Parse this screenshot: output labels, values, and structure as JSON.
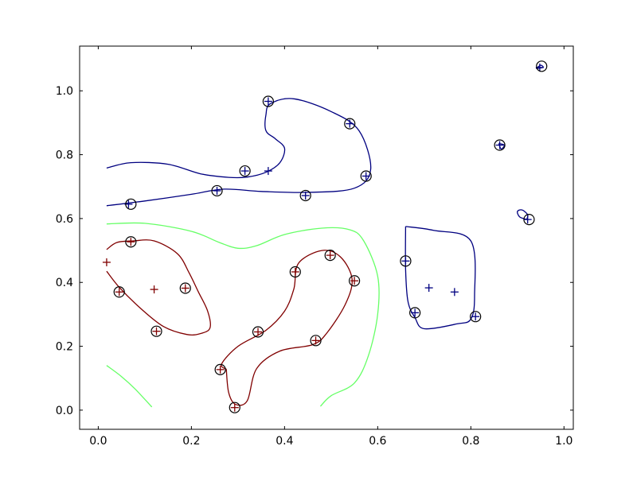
{
  "chart_data": {
    "type": "scatter",
    "title": "",
    "xlabel": "",
    "ylabel": "",
    "xlim": [
      -0.04,
      1.02
    ],
    "ylim": [
      -0.06,
      1.14
    ],
    "grid": false,
    "x_ticks": [
      "0.0",
      "0.2",
      "0.4",
      "0.6",
      "0.8",
      "1.0"
    ],
    "y_ticks": [
      "0.0",
      "0.2",
      "0.4",
      "0.6",
      "0.8",
      "1.0"
    ],
    "colors": {
      "class_pos": "#000080",
      "class_neg": "#800000",
      "boundary": "#66ff66",
      "support_vector": "#000000"
    },
    "series": [
      {
        "values": [
          [
            0.065,
            0.645
          ],
          [
            0.255,
            0.687
          ],
          [
            0.315,
            0.749
          ],
          [
            0.365,
            0.749
          ],
          [
            0.365,
            0.967
          ],
          [
            0.445,
            0.672
          ],
          [
            0.54,
            0.897
          ],
          [
            0.575,
            0.733
          ],
          [
            0.66,
            0.467
          ],
          [
            0.68,
            0.305
          ],
          [
            0.71,
            0.383
          ],
          [
            0.765,
            0.37
          ],
          [
            0.81,
            0.293
          ],
          [
            0.862,
            0.83
          ],
          [
            0.922,
            0.597
          ],
          [
            0.948,
            1.073
          ]
        ]
      },
      {
        "values": [
          [
            0.018,
            0.463
          ],
          [
            0.045,
            0.37
          ],
          [
            0.07,
            0.527
          ],
          [
            0.12,
            0.378
          ],
          [
            0.125,
            0.247
          ],
          [
            0.187,
            0.382
          ],
          [
            0.262,
            0.127
          ],
          [
            0.293,
            0.008
          ],
          [
            0.343,
            0.245
          ],
          [
            0.423,
            0.433
          ],
          [
            0.467,
            0.218
          ],
          [
            0.498,
            0.485
          ],
          [
            0.55,
            0.405
          ]
        ]
      }
    ],
    "support_vectors": [
      [
        0.07,
        0.645
      ],
      [
        0.255,
        0.687
      ],
      [
        0.315,
        0.749
      ],
      [
        0.365,
        0.967
      ],
      [
        0.445,
        0.672
      ],
      [
        0.54,
        0.897
      ],
      [
        0.575,
        0.733
      ],
      [
        0.66,
        0.467
      ],
      [
        0.68,
        0.305
      ],
      [
        0.81,
        0.293
      ],
      [
        0.862,
        0.83
      ],
      [
        0.925,
        0.597
      ],
      [
        0.952,
        1.077
      ],
      [
        0.045,
        0.37
      ],
      [
        0.07,
        0.527
      ],
      [
        0.125,
        0.247
      ],
      [
        0.187,
        0.382
      ],
      [
        0.262,
        0.127
      ],
      [
        0.293,
        0.008
      ],
      [
        0.343,
        0.245
      ],
      [
        0.423,
        0.433
      ],
      [
        0.467,
        0.218
      ],
      [
        0.498,
        0.485
      ],
      [
        0.55,
        0.405
      ]
    ],
    "contours": [
      {
        "level": "positive",
        "color": "#000080",
        "paths": [
          [
            [
              0.018,
              0.758
            ],
            [
              0.07,
              0.775
            ],
            [
              0.15,
              0.77
            ],
            [
              0.22,
              0.74
            ],
            [
              0.28,
              0.729
            ],
            [
              0.32,
              0.73
            ],
            [
              0.36,
              0.745
            ],
            [
              0.39,
              0.775
            ],
            [
              0.4,
              0.82
            ],
            [
              0.38,
              0.85
            ],
            [
              0.36,
              0.875
            ],
            [
              0.36,
              0.925
            ],
            [
              0.37,
              0.96
            ],
            [
              0.42,
              0.975
            ],
            [
              0.5,
              0.935
            ],
            [
              0.56,
              0.875
            ],
            [
              0.585,
              0.755
            ],
            [
              0.55,
              0.695
            ],
            [
              0.45,
              0.682
            ],
            [
              0.35,
              0.685
            ],
            [
              0.27,
              0.692
            ],
            [
              0.2,
              0.676
            ],
            [
              0.1,
              0.655
            ],
            [
              0.018,
              0.64
            ]
          ],
          [
            [
              0.66,
              0.575
            ],
            [
              0.72,
              0.563
            ],
            [
              0.8,
              0.53
            ],
            [
              0.808,
              0.36
            ],
            [
              0.8,
              0.285
            ],
            [
              0.77,
              0.27
            ],
            [
              0.7,
              0.255
            ],
            [
              0.68,
              0.29
            ],
            [
              0.665,
              0.34
            ],
            [
              0.66,
              0.44
            ],
            [
              0.66,
              0.575
            ]
          ],
          [
            [
              0.86,
              0.835
            ],
            [
              0.865,
              0.818
            ],
            [
              0.872,
              0.83
            ],
            [
              0.86,
              0.835
            ]
          ],
          [
            [
              0.92,
              0.597
            ],
            [
              0.905,
              0.605
            ],
            [
              0.9,
              0.622
            ],
            [
              0.91,
              0.627
            ],
            [
              0.922,
              0.612
            ],
            [
              0.92,
              0.597
            ]
          ],
          [
            [
              0.94,
              1.07
            ],
            [
              0.955,
              1.073
            ],
            [
              0.95,
              1.08
            ],
            [
              0.94,
              1.07
            ]
          ]
        ]
      },
      {
        "level": "negative",
        "color": "#800000",
        "paths": [
          [
            [
              0.018,
              0.435
            ],
            [
              0.045,
              0.385
            ],
            [
              0.09,
              0.32
            ],
            [
              0.14,
              0.262
            ],
            [
              0.19,
              0.237
            ],
            [
              0.22,
              0.24
            ],
            [
              0.24,
              0.258
            ],
            [
              0.235,
              0.31
            ],
            [
              0.215,
              0.37
            ],
            [
              0.195,
              0.43
            ],
            [
              0.17,
              0.49
            ],
            [
              0.12,
              0.53
            ],
            [
              0.075,
              0.53
            ],
            [
              0.04,
              0.525
            ],
            [
              0.018,
              0.503
            ]
          ],
          [
            [
              0.275,
              0.128
            ],
            [
              0.28,
              0.055
            ],
            [
              0.295,
              0.018
            ],
            [
              0.32,
              0.03
            ],
            [
              0.34,
              0.13
            ],
            [
              0.39,
              0.185
            ],
            [
              0.46,
              0.205
            ],
            [
              0.49,
              0.24
            ],
            [
              0.53,
              0.33
            ],
            [
              0.545,
              0.41
            ],
            [
              0.52,
              0.48
            ],
            [
              0.48,
              0.5
            ],
            [
              0.43,
              0.46
            ],
            [
              0.42,
              0.38
            ],
            [
              0.4,
              0.31
            ],
            [
              0.36,
              0.25
            ],
            [
              0.3,
              0.2
            ],
            [
              0.265,
              0.145
            ],
            [
              0.275,
              0.128
            ]
          ]
        ]
      },
      {
        "level": "zero",
        "color": "#66ff66",
        "paths": [
          [
            [
              0.018,
              0.583
            ],
            [
              0.1,
              0.585
            ],
            [
              0.2,
              0.56
            ],
            [
              0.26,
              0.525
            ],
            [
              0.3,
              0.507
            ],
            [
              0.34,
              0.515
            ],
            [
              0.4,
              0.55
            ],
            [
              0.48,
              0.57
            ],
            [
              0.54,
              0.565
            ],
            [
              0.57,
              0.53
            ],
            [
              0.6,
              0.42
            ],
            [
              0.6,
              0.3
            ],
            [
              0.58,
              0.17
            ],
            [
              0.55,
              0.085
            ],
            [
              0.5,
              0.045
            ],
            [
              0.477,
              0.012
            ]
          ],
          [
            [
              0.018,
              0.14
            ],
            [
              0.05,
              0.105
            ],
            [
              0.08,
              0.065
            ],
            [
              0.115,
              0.01
            ]
          ]
        ]
      }
    ]
  }
}
